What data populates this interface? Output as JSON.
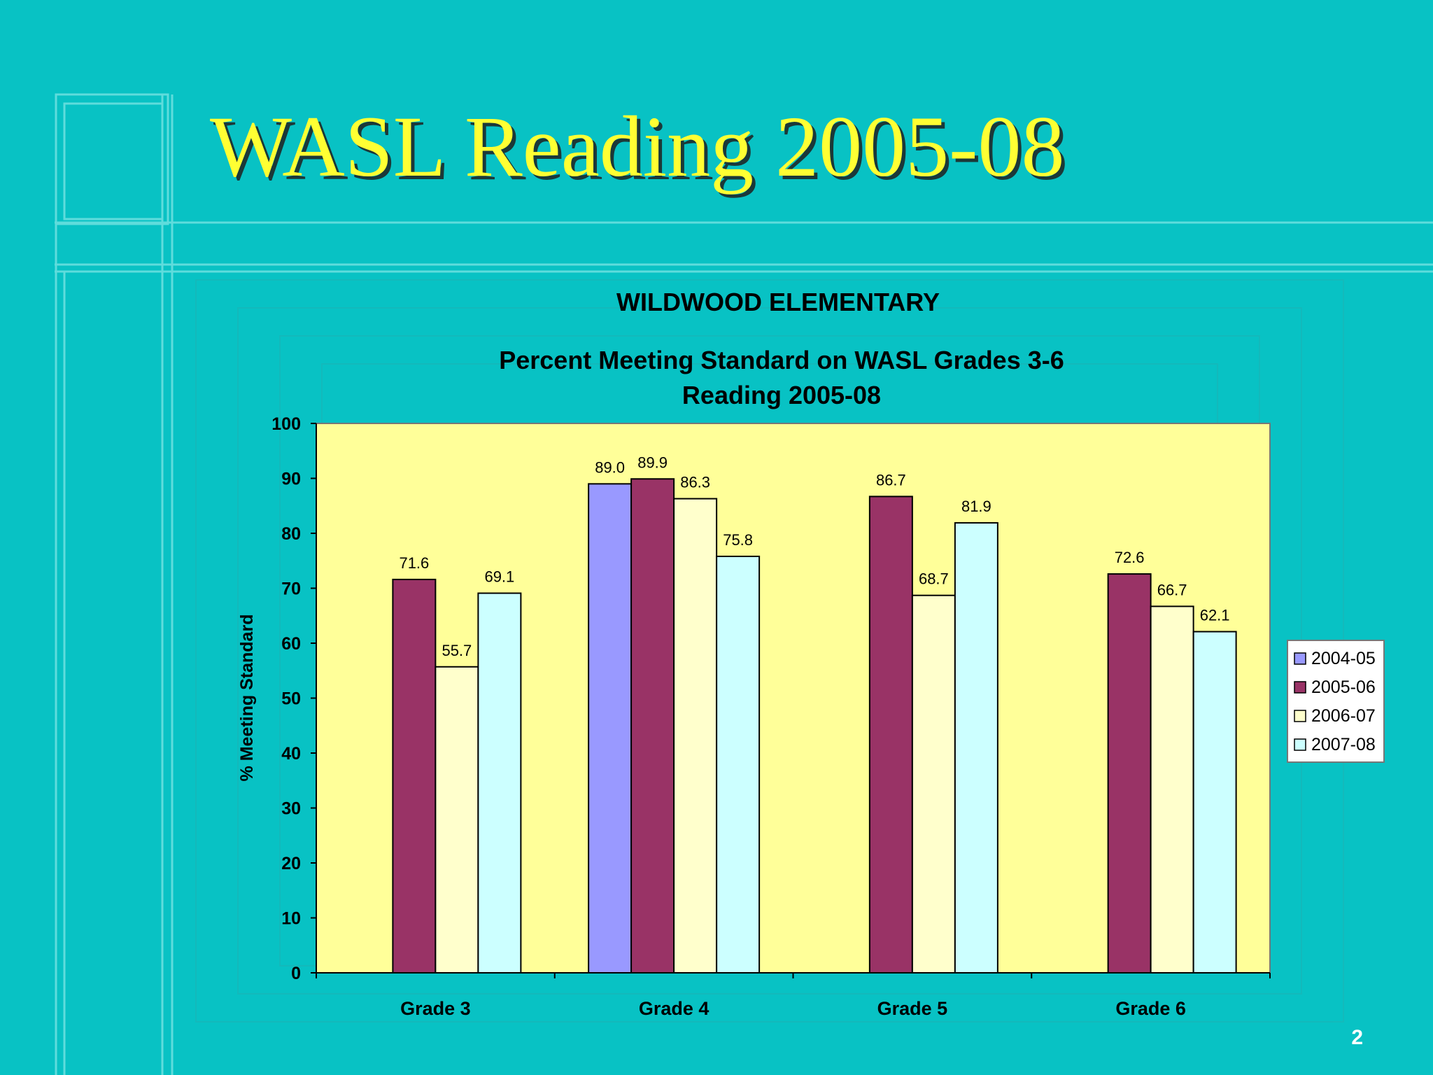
{
  "slide": {
    "title": "WASL Reading 2005-08",
    "page_number": "2"
  },
  "colors": {
    "background": "#08c2c4",
    "title_text": "#ffff33",
    "plot_area": "#ffff99"
  },
  "chart_data": {
    "type": "bar",
    "title": "WILDWOOD ELEMENTARY",
    "subtitle": [
      "Percent Meeting Standard on WASL Grades 3-6",
      "Reading 2005-08"
    ],
    "xlabel": "",
    "ylabel": "% Meeting Standard",
    "ylim": [
      0,
      100
    ],
    "yticks": [
      0,
      10,
      20,
      30,
      40,
      50,
      60,
      70,
      80,
      90,
      100
    ],
    "categories": [
      "Grade 3",
      "Grade 4",
      "Grade 5",
      "Grade 6"
    ],
    "series": [
      {
        "name": "2004-05",
        "color": "#9999ff",
        "values": [
          null,
          89.0,
          null,
          null
        ]
      },
      {
        "name": "2005-06",
        "color": "#993366",
        "values": [
          71.6,
          89.9,
          86.7,
          72.6
        ]
      },
      {
        "name": "2006-07",
        "color": "#ffffcc",
        "values": [
          55.7,
          86.3,
          68.7,
          66.7
        ]
      },
      {
        "name": "2007-08",
        "color": "#ccffff",
        "values": [
          69.1,
          75.8,
          81.9,
          62.1
        ]
      }
    ],
    "grid": false,
    "legend": "right"
  }
}
